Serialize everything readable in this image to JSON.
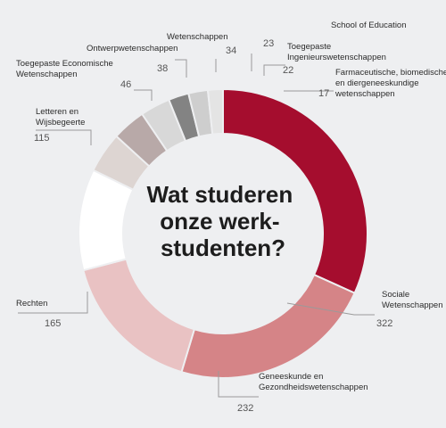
{
  "chart_data": {
    "type": "pie",
    "title_lines": [
      "Wat studeren",
      "onze werk-",
      "studenten?"
    ],
    "series": [
      {
        "name": "Sociale Wetenschappen",
        "label_lines": [
          "Sociale",
          "Wetenschappen"
        ],
        "value": 322,
        "color": "#a50d2e"
      },
      {
        "name": "Geneeskunde en Gezondheidswetenschappen",
        "label_lines": [
          "Geneeskunde en",
          "Gezondheidswetenschappen"
        ],
        "value": 232,
        "color": "#d58487"
      },
      {
        "name": "Rechten",
        "label_lines": [
          "Rechten"
        ],
        "value": 165,
        "color": "#e9c2c3"
      },
      {
        "name": "Letteren en Wijsbegeerte",
        "label_lines": [
          "Letteren en",
          "Wijsbegeerte"
        ],
        "value": 115,
        "color": "#ffffff"
      },
      {
        "name": "Toegepaste Economische Wetenschappen",
        "label_lines": [
          "Toegepaste Economische",
          "Wetenschappen"
        ],
        "value": 46,
        "color": "#ddd5d2"
      },
      {
        "name": "Ontwerpwetenschappen",
        "label_lines": [
          "Ontwerpwetenschappen"
        ],
        "value": 38,
        "color": "#b8a9a8"
      },
      {
        "name": "Wetenschappen",
        "label_lines": [
          "Wetenschappen"
        ],
        "value": 34,
        "color": "#d8d8d8"
      },
      {
        "name": "School of Education",
        "label_lines": [
          "School of Education"
        ],
        "value": 23,
        "color": "#838383"
      },
      {
        "name": "Toegepaste Ingenieurswetenschappen",
        "label_lines": [
          "Toegepaste",
          "Ingenieurswetenschappen"
        ],
        "value": 22,
        "color": "#cecece"
      },
      {
        "name": "Farmaceutische, biomedische en diergeneeskundige wetenschappen",
        "label_lines": [
          "Farmaceutische, biomedische",
          "en diergeneeskundige",
          "wetenschappen"
        ],
        "value": 17,
        "color": "#e4e4e4"
      }
    ]
  }
}
